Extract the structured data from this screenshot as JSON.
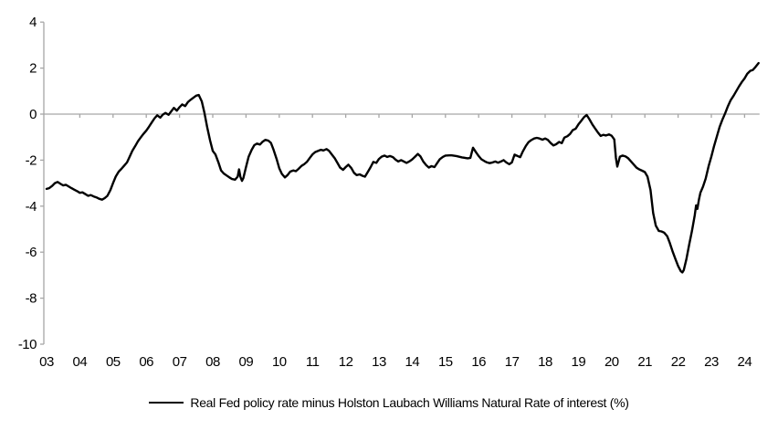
{
  "legend": {
    "label": "Real Fed policy rate minus Holston Laubach Williams Natural Rate of interest (%)"
  },
  "chart_data": {
    "type": "line",
    "title": "",
    "xlabel": "",
    "ylabel": "",
    "legend_position": "bottom-center",
    "grid": false,
    "background_color": "#ffffff",
    "axis_color": "#a6a6a6",
    "line_color": "#000000",
    "ylim": [
      -10,
      4
    ],
    "y_ticks": [
      4,
      2,
      0,
      -2,
      -4,
      -6,
      -8,
      -10
    ],
    "x_tick_labels": [
      "03",
      "04",
      "05",
      "06",
      "07",
      "08",
      "09",
      "10",
      "11",
      "12",
      "13",
      "14",
      "15",
      "16",
      "17",
      "18",
      "19",
      "20",
      "21",
      "22",
      "23",
      "24"
    ],
    "x_unit": "year (2003-2024)",
    "series": [
      {
        "name": "Real Fed policy rate minus Holston Laubach Williams Natural Rate of interest (%)",
        "points": [
          [
            2003.0,
            -3.25
          ],
          [
            2003.08,
            -3.22
          ],
          [
            2003.17,
            -3.12
          ],
          [
            2003.25,
            -3.0
          ],
          [
            2003.33,
            -2.95
          ],
          [
            2003.42,
            -3.03
          ],
          [
            2003.5,
            -3.1
          ],
          [
            2003.58,
            -3.07
          ],
          [
            2003.67,
            -3.15
          ],
          [
            2003.75,
            -3.22
          ],
          [
            2003.83,
            -3.28
          ],
          [
            2003.92,
            -3.35
          ],
          [
            2004.0,
            -3.42
          ],
          [
            2004.08,
            -3.4
          ],
          [
            2004.17,
            -3.48
          ],
          [
            2004.25,
            -3.55
          ],
          [
            2004.33,
            -3.52
          ],
          [
            2004.42,
            -3.58
          ],
          [
            2004.5,
            -3.62
          ],
          [
            2004.58,
            -3.68
          ],
          [
            2004.67,
            -3.72
          ],
          [
            2004.75,
            -3.65
          ],
          [
            2004.83,
            -3.55
          ],
          [
            2004.92,
            -3.3
          ],
          [
            2005.0,
            -3.0
          ],
          [
            2005.08,
            -2.72
          ],
          [
            2005.17,
            -2.5
          ],
          [
            2005.25,
            -2.38
          ],
          [
            2005.33,
            -2.25
          ],
          [
            2005.42,
            -2.1
          ],
          [
            2005.5,
            -1.85
          ],
          [
            2005.58,
            -1.6
          ],
          [
            2005.67,
            -1.38
          ],
          [
            2005.75,
            -1.18
          ],
          [
            2005.83,
            -1.02
          ],
          [
            2005.92,
            -0.85
          ],
          [
            2006.0,
            -0.72
          ],
          [
            2006.08,
            -0.55
          ],
          [
            2006.17,
            -0.35
          ],
          [
            2006.25,
            -0.18
          ],
          [
            2006.33,
            -0.05
          ],
          [
            2006.42,
            -0.15
          ],
          [
            2006.5,
            -0.02
          ],
          [
            2006.58,
            0.05
          ],
          [
            2006.67,
            -0.03
          ],
          [
            2006.75,
            0.12
          ],
          [
            2006.83,
            0.27
          ],
          [
            2006.92,
            0.15
          ],
          [
            2007.0,
            0.3
          ],
          [
            2007.08,
            0.42
          ],
          [
            2007.17,
            0.35
          ],
          [
            2007.25,
            0.52
          ],
          [
            2007.33,
            0.62
          ],
          [
            2007.42,
            0.72
          ],
          [
            2007.5,
            0.8
          ],
          [
            2007.58,
            0.83
          ],
          [
            2007.67,
            0.55
          ],
          [
            2007.75,
            0.05
          ],
          [
            2007.83,
            -0.55
          ],
          [
            2007.92,
            -1.15
          ],
          [
            2008.0,
            -1.6
          ],
          [
            2008.08,
            -1.75
          ],
          [
            2008.17,
            -2.1
          ],
          [
            2008.25,
            -2.45
          ],
          [
            2008.33,
            -2.58
          ],
          [
            2008.42,
            -2.67
          ],
          [
            2008.5,
            -2.75
          ],
          [
            2008.58,
            -2.82
          ],
          [
            2008.67,
            -2.85
          ],
          [
            2008.75,
            -2.72
          ],
          [
            2008.79,
            -2.4
          ],
          [
            2008.83,
            -2.72
          ],
          [
            2008.88,
            -2.9
          ],
          [
            2008.92,
            -2.78
          ],
          [
            2009.0,
            -2.3
          ],
          [
            2009.08,
            -1.85
          ],
          [
            2009.17,
            -1.55
          ],
          [
            2009.25,
            -1.35
          ],
          [
            2009.33,
            -1.28
          ],
          [
            2009.42,
            -1.32
          ],
          [
            2009.5,
            -1.2
          ],
          [
            2009.58,
            -1.12
          ],
          [
            2009.67,
            -1.15
          ],
          [
            2009.75,
            -1.25
          ],
          [
            2009.83,
            -1.55
          ],
          [
            2009.92,
            -1.95
          ],
          [
            2010.0,
            -2.35
          ],
          [
            2010.08,
            -2.6
          ],
          [
            2010.17,
            -2.75
          ],
          [
            2010.25,
            -2.65
          ],
          [
            2010.33,
            -2.5
          ],
          [
            2010.42,
            -2.45
          ],
          [
            2010.5,
            -2.48
          ],
          [
            2010.58,
            -2.38
          ],
          [
            2010.67,
            -2.25
          ],
          [
            2010.75,
            -2.18
          ],
          [
            2010.83,
            -2.08
          ],
          [
            2010.92,
            -1.9
          ],
          [
            2011.0,
            -1.75
          ],
          [
            2011.08,
            -1.65
          ],
          [
            2011.17,
            -1.6
          ],
          [
            2011.25,
            -1.55
          ],
          [
            2011.33,
            -1.58
          ],
          [
            2011.42,
            -1.52
          ],
          [
            2011.5,
            -1.6
          ],
          [
            2011.58,
            -1.75
          ],
          [
            2011.67,
            -1.92
          ],
          [
            2011.75,
            -2.12
          ],
          [
            2011.83,
            -2.32
          ],
          [
            2011.92,
            -2.42
          ],
          [
            2012.0,
            -2.3
          ],
          [
            2012.08,
            -2.2
          ],
          [
            2012.17,
            -2.35
          ],
          [
            2012.25,
            -2.55
          ],
          [
            2012.33,
            -2.65
          ],
          [
            2012.42,
            -2.62
          ],
          [
            2012.5,
            -2.68
          ],
          [
            2012.58,
            -2.72
          ],
          [
            2012.67,
            -2.5
          ],
          [
            2012.75,
            -2.3
          ],
          [
            2012.83,
            -2.08
          ],
          [
            2012.92,
            -2.12
          ],
          [
            2013.0,
            -1.95
          ],
          [
            2013.08,
            -1.85
          ],
          [
            2013.17,
            -1.8
          ],
          [
            2013.25,
            -1.86
          ],
          [
            2013.33,
            -1.82
          ],
          [
            2013.42,
            -1.87
          ],
          [
            2013.5,
            -1.98
          ],
          [
            2013.58,
            -2.06
          ],
          [
            2013.67,
            -2.0
          ],
          [
            2013.75,
            -2.06
          ],
          [
            2013.83,
            -2.12
          ],
          [
            2013.92,
            -2.05
          ],
          [
            2014.0,
            -1.97
          ],
          [
            2014.08,
            -1.86
          ],
          [
            2014.17,
            -1.73
          ],
          [
            2014.25,
            -1.84
          ],
          [
            2014.33,
            -2.05
          ],
          [
            2014.42,
            -2.22
          ],
          [
            2014.5,
            -2.32
          ],
          [
            2014.58,
            -2.26
          ],
          [
            2014.67,
            -2.3
          ],
          [
            2014.75,
            -2.13
          ],
          [
            2014.83,
            -1.96
          ],
          [
            2014.92,
            -1.86
          ],
          [
            2015.0,
            -1.8
          ],
          [
            2015.17,
            -1.79
          ],
          [
            2015.33,
            -1.82
          ],
          [
            2015.5,
            -1.88
          ],
          [
            2015.67,
            -1.92
          ],
          [
            2015.75,
            -1.9
          ],
          [
            2015.83,
            -1.46
          ],
          [
            2015.92,
            -1.66
          ],
          [
            2016.0,
            -1.82
          ],
          [
            2016.08,
            -1.96
          ],
          [
            2016.17,
            -2.04
          ],
          [
            2016.25,
            -2.1
          ],
          [
            2016.33,
            -2.13
          ],
          [
            2016.42,
            -2.1
          ],
          [
            2016.5,
            -2.06
          ],
          [
            2016.58,
            -2.11
          ],
          [
            2016.67,
            -2.06
          ],
          [
            2016.75,
            -2.0
          ],
          [
            2016.83,
            -2.1
          ],
          [
            2016.92,
            -2.18
          ],
          [
            2017.0,
            -2.1
          ],
          [
            2017.08,
            -1.76
          ],
          [
            2017.17,
            -1.82
          ],
          [
            2017.25,
            -1.87
          ],
          [
            2017.33,
            -1.62
          ],
          [
            2017.42,
            -1.38
          ],
          [
            2017.5,
            -1.22
          ],
          [
            2017.58,
            -1.13
          ],
          [
            2017.67,
            -1.06
          ],
          [
            2017.75,
            -1.03
          ],
          [
            2017.83,
            -1.06
          ],
          [
            2017.92,
            -1.11
          ],
          [
            2018.0,
            -1.06
          ],
          [
            2018.08,
            -1.12
          ],
          [
            2018.17,
            -1.26
          ],
          [
            2018.25,
            -1.36
          ],
          [
            2018.33,
            -1.31
          ],
          [
            2018.42,
            -1.21
          ],
          [
            2018.5,
            -1.26
          ],
          [
            2018.58,
            -1.02
          ],
          [
            2018.67,
            -0.96
          ],
          [
            2018.75,
            -0.86
          ],
          [
            2018.83,
            -0.7
          ],
          [
            2018.92,
            -0.63
          ],
          [
            2019.0,
            -0.45
          ],
          [
            2019.08,
            -0.3
          ],
          [
            2019.17,
            -0.13
          ],
          [
            2019.25,
            -0.04
          ],
          [
            2019.33,
            -0.22
          ],
          [
            2019.42,
            -0.45
          ],
          [
            2019.5,
            -0.62
          ],
          [
            2019.58,
            -0.78
          ],
          [
            2019.67,
            -0.95
          ],
          [
            2019.75,
            -0.9
          ],
          [
            2019.83,
            -0.93
          ],
          [
            2019.92,
            -0.88
          ],
          [
            2020.0,
            -0.94
          ],
          [
            2020.08,
            -1.1
          ],
          [
            2020.13,
            -1.9
          ],
          [
            2020.17,
            -2.28
          ],
          [
            2020.25,
            -1.85
          ],
          [
            2020.33,
            -1.8
          ],
          [
            2020.42,
            -1.84
          ],
          [
            2020.5,
            -1.92
          ],
          [
            2020.58,
            -2.05
          ],
          [
            2020.67,
            -2.2
          ],
          [
            2020.75,
            -2.33
          ],
          [
            2020.83,
            -2.4
          ],
          [
            2020.92,
            -2.46
          ],
          [
            2021.0,
            -2.52
          ],
          [
            2021.08,
            -2.72
          ],
          [
            2021.17,
            -3.3
          ],
          [
            2021.25,
            -4.3
          ],
          [
            2021.33,
            -4.85
          ],
          [
            2021.42,
            -5.08
          ],
          [
            2021.5,
            -5.1
          ],
          [
            2021.58,
            -5.15
          ],
          [
            2021.67,
            -5.3
          ],
          [
            2021.75,
            -5.6
          ],
          [
            2021.83,
            -5.95
          ],
          [
            2021.92,
            -6.3
          ],
          [
            2022.0,
            -6.6
          ],
          [
            2022.08,
            -6.82
          ],
          [
            2022.13,
            -6.88
          ],
          [
            2022.17,
            -6.78
          ],
          [
            2022.25,
            -6.3
          ],
          [
            2022.33,
            -5.7
          ],
          [
            2022.42,
            -5.05
          ],
          [
            2022.5,
            -4.4
          ],
          [
            2022.54,
            -3.97
          ],
          [
            2022.58,
            -4.12
          ],
          [
            2022.63,
            -3.7
          ],
          [
            2022.67,
            -3.42
          ],
          [
            2022.75,
            -3.15
          ],
          [
            2022.83,
            -2.8
          ],
          [
            2022.92,
            -2.25
          ],
          [
            2023.0,
            -1.85
          ],
          [
            2023.08,
            -1.4
          ],
          [
            2023.17,
            -0.95
          ],
          [
            2023.25,
            -0.55
          ],
          [
            2023.33,
            -0.25
          ],
          [
            2023.42,
            0.05
          ],
          [
            2023.5,
            0.35
          ],
          [
            2023.58,
            0.6
          ],
          [
            2023.67,
            0.8
          ],
          [
            2023.75,
            1.0
          ],
          [
            2023.83,
            1.2
          ],
          [
            2023.92,
            1.4
          ],
          [
            2024.0,
            1.55
          ],
          [
            2024.08,
            1.75
          ],
          [
            2024.17,
            1.88
          ],
          [
            2024.25,
            1.92
          ],
          [
            2024.33,
            2.05
          ],
          [
            2024.42,
            2.22
          ]
        ]
      }
    ]
  }
}
